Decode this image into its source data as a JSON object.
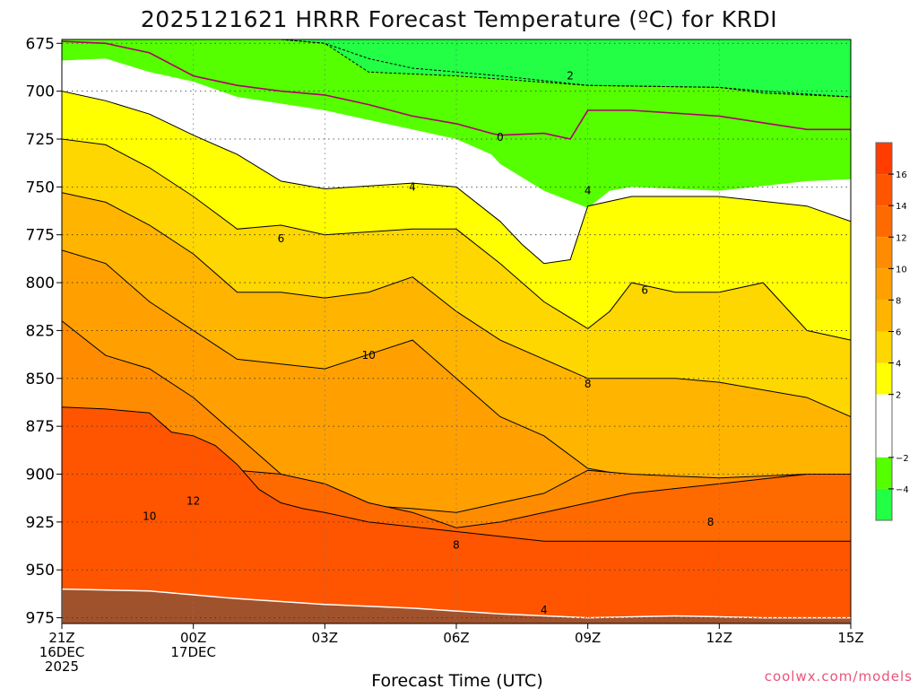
{
  "chart_data": {
    "type": "heatmap",
    "title": "2025121621 HRRR Forecast Temperature (ºC) for KRDI",
    "xlabel": "Forecast Time (UTC)",
    "credit": "coolwx.com/models",
    "x_range_hours": [
      0,
      18
    ],
    "y_range_hpa": [
      673,
      978
    ],
    "y_axis_inverted": true,
    "grid": true,
    "x_ticks": [
      {
        "h": 0,
        "label": "21Z",
        "sub": [
          "16DEC",
          "2025"
        ]
      },
      {
        "h": 3,
        "label": "00Z",
        "sub": [
          "17DEC"
        ]
      },
      {
        "h": 6,
        "label": "03Z",
        "sub": []
      },
      {
        "h": 9,
        "label": "06Z",
        "sub": []
      },
      {
        "h": 12,
        "label": "09Z",
        "sub": []
      },
      {
        "h": 15,
        "label": "12Z",
        "sub": []
      },
      {
        "h": 18,
        "label": "15Z",
        "sub": []
      }
    ],
    "y_ticks": [
      675,
      700,
      725,
      750,
      775,
      800,
      825,
      850,
      875,
      900,
      925,
      950,
      975
    ],
    "colorbar": {
      "placement": "right",
      "bands": [
        {
          "from": 16,
          "to": 18,
          "color": "#ff3d00"
        },
        {
          "from": 14,
          "to": 16,
          "color": "#ff5500"
        },
        {
          "from": 12,
          "to": 14,
          "color": "#ff6a00"
        },
        {
          "from": 10,
          "to": 12,
          "color": "#ff8c00"
        },
        {
          "from": 8,
          "to": 10,
          "color": "#ffa000"
        },
        {
          "from": 6,
          "to": 8,
          "color": "#ffb400"
        },
        {
          "from": 4,
          "to": 6,
          "color": "#ffd700"
        },
        {
          "from": 2,
          "to": 4,
          "color": "#ffff00"
        },
        {
          "from": -2,
          "to": 2,
          "color": "#ffffff"
        },
        {
          "from": -4,
          "to": -2,
          "color": "#55ff00"
        },
        {
          "from": -6,
          "to": -4,
          "color": "#22ff44"
        }
      ],
      "labels": [
        {
          "v": 16,
          "t": "16"
        },
        {
          "v": 14,
          "t": "14"
        },
        {
          "v": 12,
          "t": "12"
        },
        {
          "v": 10,
          "t": "10"
        },
        {
          "v": 8,
          "t": "8"
        },
        {
          "v": 6,
          "t": "6"
        },
        {
          "v": 4,
          "t": "4"
        },
        {
          "v": 2,
          "t": "2"
        },
        {
          "v": -2,
          "t": "−2"
        },
        {
          "v": -4,
          "t": "−4"
        }
      ]
    },
    "contour_bands": [
      {
        "temp_range": "-4 to -2",
        "color": "#55ff00",
        "lower": [
          [
            0,
            673
          ],
          [
            2,
            673
          ],
          [
            3,
            673
          ],
          [
            4,
            673
          ],
          [
            5,
            673
          ],
          [
            6,
            675
          ],
          [
            7,
            690
          ],
          [
            9,
            692
          ],
          [
            12,
            697
          ],
          [
            15,
            698
          ],
          [
            16,
            701
          ],
          [
            18,
            703
          ]
        ]
      },
      {
        "temp_range": "-2 to 2",
        "color": "#ffffff",
        "lower": [
          [
            0,
            684
          ],
          [
            1,
            683
          ],
          [
            2,
            690
          ],
          [
            3,
            695
          ],
          [
            4,
            703
          ],
          [
            6,
            710
          ],
          [
            8,
            720
          ],
          [
            9,
            725
          ],
          [
            9.8,
            733
          ],
          [
            10,
            738
          ],
          [
            11,
            752
          ],
          [
            12,
            761
          ],
          [
            12.5,
            752
          ],
          [
            13,
            750
          ],
          [
            15,
            752
          ],
          [
            17,
            747
          ],
          [
            18,
            746
          ]
        ]
      },
      {
        "temp_range": "2 to 4",
        "color": "#ffff00",
        "lower": [
          [
            0,
            700
          ],
          [
            1,
            705
          ],
          [
            2,
            712
          ],
          [
            3,
            723
          ],
          [
            4,
            733
          ],
          [
            5,
            747
          ],
          [
            6,
            751
          ],
          [
            8,
            748
          ],
          [
            9,
            750
          ],
          [
            10,
            768
          ],
          [
            10.5,
            780
          ],
          [
            11,
            790
          ],
          [
            11.6,
            788
          ],
          [
            12,
            760
          ],
          [
            13,
            755
          ],
          [
            15,
            755
          ],
          [
            17,
            760
          ],
          [
            18,
            768
          ]
        ]
      },
      {
        "temp_range": "4 to 6",
        "color": "#ffd700",
        "lower": [
          [
            0,
            725
          ],
          [
            1,
            728
          ],
          [
            2,
            740
          ],
          [
            3,
            755
          ],
          [
            4,
            772
          ],
          [
            5,
            770
          ],
          [
            6,
            775
          ],
          [
            8,
            772
          ],
          [
            9,
            772
          ],
          [
            10,
            790
          ],
          [
            11,
            810
          ],
          [
            12,
            824
          ],
          [
            12.5,
            815
          ],
          [
            13,
            800
          ],
          [
            14,
            805
          ],
          [
            15,
            805
          ],
          [
            16,
            800
          ],
          [
            17,
            825
          ],
          [
            18,
            830
          ]
        ]
      },
      {
        "temp_range": "6 to 8",
        "color": "#ffb400",
        "lower": [
          [
            0,
            753
          ],
          [
            1,
            758
          ],
          [
            2,
            770
          ],
          [
            3,
            785
          ],
          [
            4,
            805
          ],
          [
            5,
            805
          ],
          [
            6,
            808
          ],
          [
            7,
            805
          ],
          [
            8,
            797
          ],
          [
            9,
            815
          ],
          [
            10,
            830
          ],
          [
            11,
            840
          ],
          [
            12,
            850
          ],
          [
            14,
            850
          ],
          [
            15,
            852
          ],
          [
            17,
            860
          ],
          [
            18,
            870
          ]
        ]
      },
      {
        "temp_range": "8 to 10",
        "color": "#ffa000",
        "lower": [
          [
            0,
            783
          ],
          [
            1,
            790
          ],
          [
            2,
            810
          ],
          [
            3,
            825
          ],
          [
            4,
            840
          ],
          [
            6,
            845
          ],
          [
            8,
            830
          ],
          [
            9,
            850
          ],
          [
            10,
            870
          ],
          [
            11,
            880
          ],
          [
            12,
            897
          ],
          [
            14,
            905
          ],
          [
            15,
            912
          ],
          [
            17,
            912
          ],
          [
            18,
            908
          ]
        ]
      },
      {
        "temp_range": "10 to 12",
        "color": "#ff8c00",
        "lower": [
          [
            0,
            820
          ],
          [
            1,
            838
          ],
          [
            2,
            845
          ],
          [
            3,
            860
          ],
          [
            4,
            880
          ],
          [
            5,
            900
          ],
          [
            6,
            915
          ],
          [
            8,
            918
          ],
          [
            9,
            920
          ],
          [
            10,
            915
          ],
          [
            11,
            910
          ],
          [
            12,
            898
          ],
          [
            13,
            900
          ],
          [
            15,
            902
          ],
          [
            17,
            900
          ],
          [
            18,
            900
          ]
        ]
      },
      {
        "temp_range": "12 to 14",
        "color": "#ff6a00",
        "lower": [
          [
            0,
            880
          ],
          [
            1,
            882
          ],
          [
            2,
            885
          ],
          [
            3,
            890
          ],
          [
            4,
            898
          ],
          [
            5,
            900
          ],
          [
            6,
            905
          ],
          [
            7,
            915
          ],
          [
            8,
            920
          ],
          [
            9,
            928
          ],
          [
            10,
            925
          ],
          [
            11,
            920
          ],
          [
            12,
            915
          ],
          [
            13,
            910
          ],
          [
            15,
            905
          ],
          [
            17,
            900
          ],
          [
            18,
            900
          ]
        ]
      },
      {
        "temp_range": "14 to 16",
        "color": "#ff5500",
        "lower": [
          [
            0,
            865
          ],
          [
            1,
            866
          ],
          [
            2,
            868
          ],
          [
            2.5,
            878
          ],
          [
            3,
            880
          ],
          [
            3.5,
            885
          ],
          [
            4,
            895
          ],
          [
            4.5,
            908
          ],
          [
            5,
            915
          ],
          [
            5.5,
            918
          ],
          [
            6,
            920
          ],
          [
            7,
            925
          ],
          [
            9,
            930
          ],
          [
            11,
            935
          ],
          [
            13,
            935
          ],
          [
            15,
            935
          ],
          [
            17,
            935
          ],
          [
            18,
            935
          ]
        ]
      }
    ],
    "contour_lines": [
      {
        "value": "0",
        "color": "#b0006a",
        "points": [
          [
            0,
            674
          ],
          [
            1,
            675
          ],
          [
            2,
            680
          ],
          [
            3,
            692
          ],
          [
            4,
            697
          ],
          [
            5,
            700
          ],
          [
            6,
            702
          ],
          [
            7,
            707
          ],
          [
            8,
            713
          ],
          [
            9,
            717
          ],
          [
            9.8,
            722
          ],
          [
            10,
            723
          ],
          [
            11,
            722
          ],
          [
            11.6,
            725
          ],
          [
            12,
            710
          ],
          [
            13,
            710
          ],
          [
            15,
            713
          ],
          [
            17,
            720
          ],
          [
            18,
            720
          ]
        ]
      },
      {
        "value": "2",
        "color": "#000000",
        "points": [
          [
            5,
            673
          ],
          [
            6,
            675
          ],
          [
            7,
            683
          ],
          [
            8,
            688
          ],
          [
            9,
            690
          ],
          [
            10,
            692
          ],
          [
            12,
            697
          ],
          [
            15,
            698
          ],
          [
            16,
            700
          ],
          [
            18,
            703
          ]
        ]
      }
    ],
    "contour_labels": [
      {
        "t": "0",
        "h": 10,
        "p": 724
      },
      {
        "t": "2",
        "h": 11.6,
        "p": 692
      },
      {
        "t": "4",
        "h": 8,
        "p": 750
      },
      {
        "t": "4",
        "h": 12,
        "p": 752
      },
      {
        "t": "6",
        "h": 5,
        "p": 777
      },
      {
        "t": "6",
        "h": 13.3,
        "p": 804
      },
      {
        "t": "8",
        "h": 12,
        "p": 853
      },
      {
        "t": "8",
        "h": 9,
        "p": 937
      },
      {
        "t": "8",
        "h": 14.8,
        "p": 925
      },
      {
        "t": "10",
        "h": 7,
        "p": 838
      },
      {
        "t": "10",
        "h": 2,
        "p": 922
      },
      {
        "t": "12",
        "h": 3,
        "p": 914
      },
      {
        "t": "4",
        "h": 11,
        "p": 971
      }
    ],
    "ground": {
      "color": "#a0522d",
      "top": [
        [
          0,
          960
        ],
        [
          2,
          961
        ],
        [
          4,
          965
        ],
        [
          6,
          968
        ],
        [
          8,
          970
        ],
        [
          10,
          973
        ],
        [
          12,
          975
        ],
        [
          14,
          974
        ],
        [
          16,
          975
        ],
        [
          18,
          975
        ]
      ]
    }
  }
}
